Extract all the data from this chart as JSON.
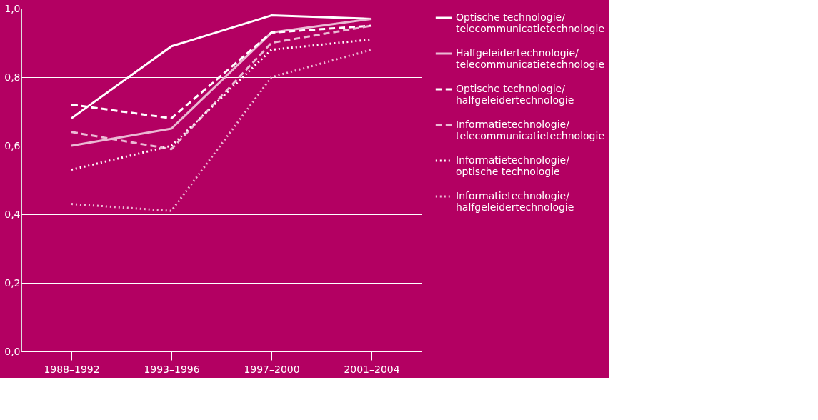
{
  "chart_data": {
    "type": "line",
    "categories": [
      "1988–1992",
      "1993–1996",
      "1997–2000",
      "2001–2004"
    ],
    "series": [
      {
        "name": "Optische technologie/telecommunicatietechnologie",
        "color": "#ffffff",
        "line_style": "solid",
        "values": [
          0.68,
          0.89,
          0.98,
          0.97
        ]
      },
      {
        "name": "Halfgeleidertechnologie/telecommunicatietechnologie",
        "color": "#ebb9d4",
        "line_style": "solid",
        "values": [
          0.6,
          0.65,
          0.93,
          0.97
        ]
      },
      {
        "name": "Optische technologie/halfgeleidertechnologie",
        "color": "#ffffff",
        "line_style": "dashed",
        "values": [
          0.72,
          0.68,
          0.93,
          0.95
        ]
      },
      {
        "name": "Informatietechnologie/telecommunicatietechnologie",
        "color": "#ebb9d4",
        "line_style": "dashed",
        "values": [
          0.64,
          0.59,
          0.9,
          0.95
        ]
      },
      {
        "name": "Informatietechnologie/optische technologie",
        "color": "#ffffff",
        "line_style": "dotted",
        "values": [
          0.53,
          0.6,
          0.88,
          0.91
        ]
      },
      {
        "name": "Informatietechnologie/halfgeleidertechnologie",
        "color": "#ebb9d4",
        "line_style": "dotted",
        "values": [
          0.43,
          0.41,
          0.8,
          0.88
        ]
      }
    ],
    "ylim": [
      0,
      1.0
    ],
    "yticks": [
      {
        "value": 0,
        "label": "0,0"
      },
      {
        "value": 0.2,
        "label": "0,2"
      },
      {
        "value": 0.4,
        "label": "0,4"
      },
      {
        "value": 0.6,
        "label": "0,6"
      },
      {
        "value": 0.8,
        "label": "0,8"
      },
      {
        "value": 1.0,
        "label": "1,0"
      }
    ],
    "grid": "y",
    "legend": "right",
    "marker": "none"
  }
}
